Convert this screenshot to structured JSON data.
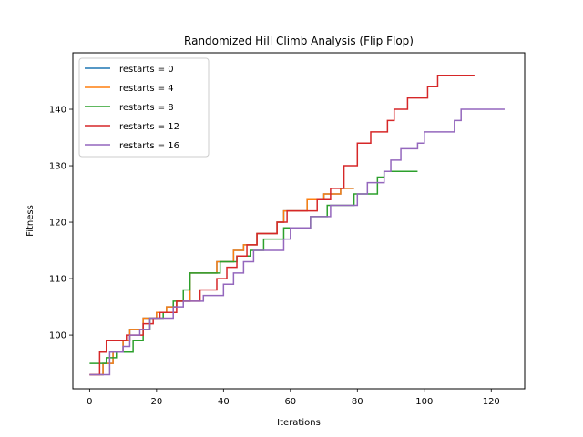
{
  "chart_data": {
    "type": "line",
    "title": "Randomized Hill Climb Analysis (Flip Flop)",
    "xlabel": "Iterations",
    "ylabel": "Fitness",
    "xlim": [
      -5,
      130
    ],
    "ylim": [
      90.5,
      150
    ],
    "xticks": [
      0,
      20,
      40,
      60,
      80,
      100,
      120
    ],
    "yticks": [
      100,
      110,
      120,
      130,
      140
    ],
    "grid": false,
    "legend_position": "top-left",
    "series": [
      {
        "name": "restarts = 0",
        "color": "#1f77b4",
        "points": [
          [
            0,
            93
          ],
          [
            4,
            93
          ],
          [
            4,
            95
          ],
          [
            7,
            95
          ],
          [
            7,
            97
          ],
          [
            10,
            97
          ],
          [
            10,
            99
          ],
          [
            12,
            99
          ],
          [
            12,
            101
          ],
          [
            16,
            101
          ],
          [
            16,
            103
          ],
          [
            20,
            103
          ],
          [
            20,
            104
          ],
          [
            23,
            104
          ],
          [
            23,
            105
          ],
          [
            26,
            105
          ],
          [
            26,
            106
          ],
          [
            30,
            106
          ],
          [
            30,
            111
          ],
          [
            38,
            111
          ],
          [
            38,
            113
          ],
          [
            43,
            113
          ],
          [
            43,
            115
          ],
          [
            46,
            115
          ],
          [
            46,
            116
          ],
          [
            50,
            116
          ],
          [
            50,
            118
          ],
          [
            56,
            118
          ],
          [
            56,
            120
          ],
          [
            58,
            120
          ],
          [
            58,
            122
          ],
          [
            65,
            122
          ],
          [
            65,
            124
          ],
          [
            70,
            124
          ],
          [
            70,
            125
          ],
          [
            75,
            125
          ],
          [
            75,
            126
          ],
          [
            79,
            126
          ]
        ]
      },
      {
        "name": "restarts = 4",
        "color": "#ff7f0e",
        "points": [
          [
            0,
            93
          ],
          [
            4,
            93
          ],
          [
            4,
            95
          ],
          [
            7,
            95
          ],
          [
            7,
            97
          ],
          [
            10,
            97
          ],
          [
            10,
            99
          ],
          [
            12,
            99
          ],
          [
            12,
            101
          ],
          [
            16,
            101
          ],
          [
            16,
            103
          ],
          [
            20,
            103
          ],
          [
            20,
            104
          ],
          [
            23,
            104
          ],
          [
            23,
            105
          ],
          [
            26,
            105
          ],
          [
            26,
            106
          ],
          [
            30,
            106
          ],
          [
            30,
            111
          ],
          [
            38,
            111
          ],
          [
            38,
            113
          ],
          [
            43,
            113
          ],
          [
            43,
            115
          ],
          [
            46,
            115
          ],
          [
            46,
            116
          ],
          [
            50,
            116
          ],
          [
            50,
            118
          ],
          [
            56,
            118
          ],
          [
            56,
            120
          ],
          [
            58,
            120
          ],
          [
            58,
            122
          ],
          [
            65,
            122
          ],
          [
            65,
            124
          ],
          [
            70,
            124
          ],
          [
            70,
            125
          ],
          [
            75,
            125
          ],
          [
            75,
            126
          ],
          [
            79,
            126
          ]
        ]
      },
      {
        "name": "restarts = 8",
        "color": "#2ca02c",
        "points": [
          [
            0,
            95
          ],
          [
            5,
            95
          ],
          [
            5,
            96
          ],
          [
            8,
            96
          ],
          [
            8,
            97
          ],
          [
            13,
            97
          ],
          [
            13,
            99
          ],
          [
            16,
            99
          ],
          [
            16,
            101
          ],
          [
            18,
            101
          ],
          [
            18,
            103
          ],
          [
            22,
            103
          ],
          [
            22,
            104
          ],
          [
            25,
            104
          ],
          [
            25,
            106
          ],
          [
            28,
            106
          ],
          [
            28,
            108
          ],
          [
            30,
            108
          ],
          [
            30,
            111
          ],
          [
            39,
            111
          ],
          [
            39,
            113
          ],
          [
            44,
            113
          ],
          [
            44,
            114
          ],
          [
            48,
            114
          ],
          [
            48,
            115
          ],
          [
            52,
            115
          ],
          [
            52,
            117
          ],
          [
            58,
            117
          ],
          [
            58,
            119
          ],
          [
            66,
            119
          ],
          [
            66,
            121
          ],
          [
            71,
            121
          ],
          [
            71,
            123
          ],
          [
            79,
            123
          ],
          [
            79,
            125
          ],
          [
            86,
            125
          ],
          [
            86,
            128
          ],
          [
            88,
            128
          ],
          [
            88,
            129
          ],
          [
            98,
            129
          ]
        ]
      },
      {
        "name": "restarts = 12",
        "color": "#d62728",
        "points": [
          [
            0,
            93
          ],
          [
            3,
            93
          ],
          [
            3,
            97
          ],
          [
            5,
            97
          ],
          [
            5,
            99
          ],
          [
            11,
            99
          ],
          [
            11,
            100
          ],
          [
            16,
            100
          ],
          [
            16,
            102
          ],
          [
            19,
            102
          ],
          [
            19,
            103
          ],
          [
            21,
            103
          ],
          [
            21,
            104
          ],
          [
            26,
            104
          ],
          [
            26,
            106
          ],
          [
            33,
            106
          ],
          [
            33,
            108
          ],
          [
            38,
            108
          ],
          [
            38,
            110
          ],
          [
            41,
            110
          ],
          [
            41,
            112
          ],
          [
            44,
            112
          ],
          [
            44,
            114
          ],
          [
            47,
            114
          ],
          [
            47,
            116
          ],
          [
            50,
            116
          ],
          [
            50,
            118
          ],
          [
            56,
            118
          ],
          [
            56,
            120
          ],
          [
            59,
            120
          ],
          [
            59,
            122
          ],
          [
            68,
            122
          ],
          [
            68,
            124
          ],
          [
            72,
            124
          ],
          [
            72,
            126
          ],
          [
            76,
            126
          ],
          [
            76,
            130
          ],
          [
            80,
            130
          ],
          [
            80,
            134
          ],
          [
            84,
            134
          ],
          [
            84,
            136
          ],
          [
            89,
            136
          ],
          [
            89,
            138
          ],
          [
            91,
            138
          ],
          [
            91,
            140
          ],
          [
            95,
            140
          ],
          [
            95,
            142
          ],
          [
            101,
            142
          ],
          [
            101,
            144
          ],
          [
            104,
            144
          ],
          [
            104,
            146
          ],
          [
            115,
            146
          ]
        ]
      },
      {
        "name": "restarts = 16",
        "color": "#9467bd",
        "points": [
          [
            0,
            93
          ],
          [
            6,
            93
          ],
          [
            6,
            97
          ],
          [
            10,
            97
          ],
          [
            10,
            98
          ],
          [
            12,
            98
          ],
          [
            12,
            100
          ],
          [
            15,
            100
          ],
          [
            15,
            101
          ],
          [
            18,
            101
          ],
          [
            18,
            103
          ],
          [
            25,
            103
          ],
          [
            25,
            105
          ],
          [
            28,
            105
          ],
          [
            28,
            106
          ],
          [
            34,
            106
          ],
          [
            34,
            107
          ],
          [
            40,
            107
          ],
          [
            40,
            109
          ],
          [
            43,
            109
          ],
          [
            43,
            111
          ],
          [
            46,
            111
          ],
          [
            46,
            113
          ],
          [
            49,
            113
          ],
          [
            49,
            115
          ],
          [
            58,
            115
          ],
          [
            58,
            117
          ],
          [
            60,
            117
          ],
          [
            60,
            119
          ],
          [
            66,
            119
          ],
          [
            66,
            121
          ],
          [
            72,
            121
          ],
          [
            72,
            123
          ],
          [
            80,
            123
          ],
          [
            80,
            125
          ],
          [
            83,
            125
          ],
          [
            83,
            127
          ],
          [
            88,
            127
          ],
          [
            88,
            129
          ],
          [
            90,
            129
          ],
          [
            90,
            131
          ],
          [
            93,
            131
          ],
          [
            93,
            133
          ],
          [
            98,
            133
          ],
          [
            98,
            134
          ],
          [
            100,
            134
          ],
          [
            100,
            136
          ],
          [
            109,
            136
          ],
          [
            109,
            138
          ],
          [
            111,
            138
          ],
          [
            111,
            140
          ],
          [
            124,
            140
          ]
        ]
      }
    ]
  }
}
